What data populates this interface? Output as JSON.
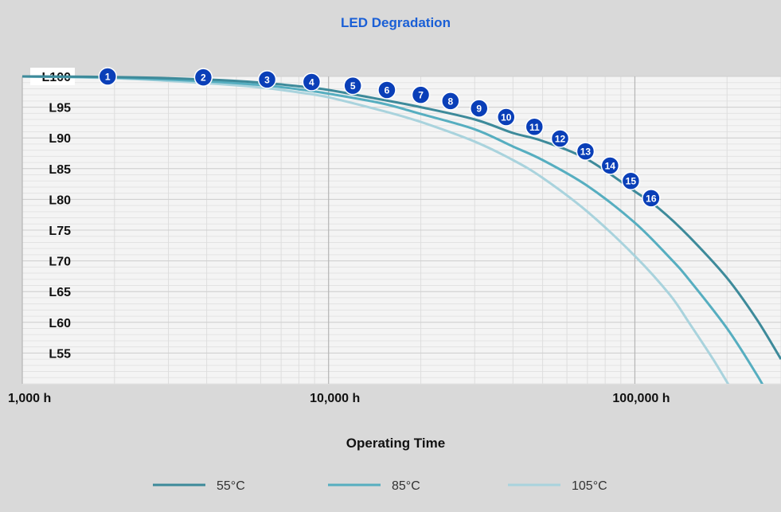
{
  "chart_data": {
    "type": "line",
    "title": "LED Degradation",
    "xlabel": "Operating Time",
    "ylabel": "",
    "x_scale": "log",
    "xlim": [
      1000,
      300000
    ],
    "ylim": [
      50,
      100
    ],
    "x_ticks": [
      {
        "value": 1000,
        "label": "1,000 h"
      },
      {
        "value": 10000,
        "label": "10,000 h"
      },
      {
        "value": 100000,
        "label": "100,000 h"
      }
    ],
    "y_ticks": [
      {
        "value": 100,
        "label": "L100"
      },
      {
        "value": 95,
        "label": "L95"
      },
      {
        "value": 90,
        "label": "L90"
      },
      {
        "value": 85,
        "label": "L85"
      },
      {
        "value": 80,
        "label": "L80"
      },
      {
        "value": 75,
        "label": "L75"
      },
      {
        "value": 70,
        "label": "L70"
      },
      {
        "value": 65,
        "label": "L65"
      },
      {
        "value": 60,
        "label": "L60"
      },
      {
        "value": 55,
        "label": "L55"
      }
    ],
    "grid": true,
    "legend_position": "bottom",
    "series": [
      {
        "name": "55°C",
        "color": "#3d8a9a",
        "x": [
          1000,
          2000,
          4000,
          6000,
          8000,
          10000,
          15000,
          20000,
          30000,
          40000,
          50000,
          70000,
          100000,
          120000,
          150000,
          200000,
          250000,
          300000
        ],
        "y": [
          100,
          99.9,
          99.5,
          99.0,
          98.4,
          97.8,
          96.2,
          95.0,
          93.0,
          90.8,
          89.5,
          86.5,
          81.3,
          78.5,
          74.0,
          67.2,
          60.5,
          54.0
        ]
      },
      {
        "name": "85°C",
        "color": "#56aec0",
        "x": [
          1000,
          2000,
          4000,
          6000,
          8000,
          10000,
          15000,
          20000,
          30000,
          40000,
          50000,
          70000,
          100000,
          130000,
          150000,
          200000,
          250000,
          270000
        ],
        "y": [
          100,
          99.8,
          99.2,
          98.6,
          97.9,
          97.2,
          95.6,
          93.9,
          91.4,
          88.6,
          86.4,
          82.2,
          76.2,
          70.5,
          67.0,
          59.0,
          51.5,
          48.5
        ]
      },
      {
        "name": "105°C",
        "color": "#a9d3dd",
        "x": [
          1000,
          2000,
          4000,
          6000,
          8000,
          10000,
          15000,
          20000,
          30000,
          40000,
          50000,
          70000,
          100000,
          130000,
          150000,
          180000,
          210000
        ],
        "y": [
          100,
          99.7,
          98.9,
          98.2,
          97.4,
          96.6,
          94.4,
          92.6,
          89.4,
          86.4,
          83.5,
          78.0,
          70.8,
          64.5,
          60.0,
          54.0,
          48.5
        ]
      }
    ],
    "markers": [
      {
        "label": "1",
        "x": 1900,
        "y": 100
      },
      {
        "label": "2",
        "x": 3900,
        "y": 99.85
      },
      {
        "label": "3",
        "x": 6300,
        "y": 99.5
      },
      {
        "label": "4",
        "x": 8800,
        "y": 99.1
      },
      {
        "label": "5",
        "x": 12000,
        "y": 98.5
      },
      {
        "label": "6",
        "x": 15500,
        "y": 97.8
      },
      {
        "label": "7",
        "x": 20000,
        "y": 97.0
      },
      {
        "label": "8",
        "x": 25000,
        "y": 96.0
      },
      {
        "label": "9",
        "x": 31000,
        "y": 94.8
      },
      {
        "label": "10",
        "x": 38000,
        "y": 93.4
      },
      {
        "label": "11",
        "x": 47000,
        "y": 91.8
      },
      {
        "label": "12",
        "x": 57000,
        "y": 89.9
      },
      {
        "label": "13",
        "x": 69000,
        "y": 87.8
      },
      {
        "label": "14",
        "x": 83000,
        "y": 85.5
      },
      {
        "label": "15",
        "x": 97000,
        "y": 83.0
      },
      {
        "label": "16",
        "x": 113000,
        "y": 80.2
      }
    ]
  },
  "colors": {
    "plot_background": "#f4f4f4",
    "page_background": "#d9d9d9",
    "marker_fill": "#0a3fb8",
    "title": "#1a5fd6"
  }
}
